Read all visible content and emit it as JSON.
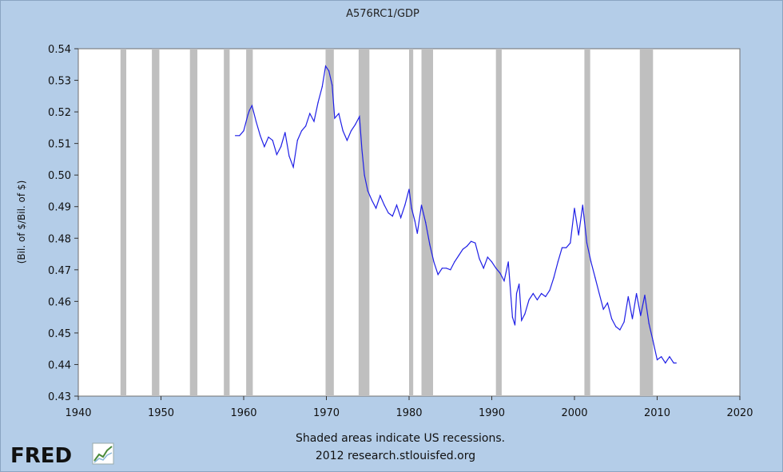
{
  "chart_data": {
    "type": "line",
    "title": "A576RC1/GDP",
    "ylabel": "(Bil. of $/Bil. of $)",
    "xlabel": "",
    "xlim": [
      1940,
      2020
    ],
    "ylim": [
      0.43,
      0.54
    ],
    "x_ticks": [
      1940,
      1950,
      1960,
      1970,
      1980,
      1990,
      2000,
      2010,
      2020
    ],
    "x_tick_labels": [
      "1940",
      "1950",
      "1960",
      "1970",
      "1980",
      "1990",
      "2000",
      "2010",
      "2020"
    ],
    "y_ticks": [
      0.43,
      0.44,
      0.45,
      0.46,
      0.47,
      0.48,
      0.49,
      0.5,
      0.51,
      0.52,
      0.53,
      0.54
    ],
    "y_tick_labels": [
      "0.43",
      "0.44",
      "0.45",
      "0.46",
      "0.47",
      "0.48",
      "0.49",
      "0.50",
      "0.51",
      "0.52",
      "0.53",
      "0.54"
    ],
    "grid": false,
    "line_color": "#1f1fe6",
    "recessions": [
      [
        1945.1,
        1945.8
      ],
      [
        1948.9,
        1949.8
      ],
      [
        1953.5,
        1954.4
      ],
      [
        1957.6,
        1958.3
      ],
      [
        1960.3,
        1961.1
      ],
      [
        1969.9,
        1970.9
      ],
      [
        1973.9,
        1975.2
      ],
      [
        1980.0,
        1980.5
      ],
      [
        1981.5,
        1982.9
      ],
      [
        1990.5,
        1991.2
      ],
      [
        2001.2,
        2001.9
      ],
      [
        2007.9,
        2009.5
      ]
    ],
    "recession_color": "#bfbfbf",
    "series": [
      {
        "x": [
          1959.0,
          1959.5,
          1960.0,
          1960.5,
          1960.7,
          1961.0,
          1961.5,
          1962.0,
          1962.5,
          1963.0,
          1963.5,
          1964.0,
          1964.5,
          1965.0,
          1965.5,
          1966.0,
          1966.5,
          1967.0,
          1967.5,
          1968.0,
          1968.5,
          1969.0,
          1969.5,
          1969.9,
          1970.3,
          1970.7,
          1971.0,
          1971.5,
          1972.0,
          1972.5,
          1973.0,
          1973.5,
          1974.0,
          1974.3,
          1974.6,
          1975.0,
          1975.5,
          1976.0,
          1976.5,
          1977.0,
          1977.5,
          1978.0,
          1978.5,
          1979.0,
          1979.5,
          1980.0,
          1980.3,
          1980.7,
          1981.0,
          1981.5,
          1982.0,
          1982.5,
          1983.0,
          1983.5,
          1984.0,
          1984.5,
          1985.0,
          1985.5,
          1986.0,
          1986.5,
          1987.0,
          1987.5,
          1988.0,
          1988.5,
          1989.0,
          1989.5,
          1990.0,
          1990.5,
          1991.0,
          1991.5,
          1992.0,
          1992.5,
          1992.8,
          1993.0,
          1993.3,
          1993.6,
          1994.0,
          1994.5,
          1995.0,
          1995.5,
          1996.0,
          1996.5,
          1997.0,
          1997.5,
          1998.0,
          1998.5,
          1999.0,
          1999.5,
          2000.0,
          2000.5,
          2001.0,
          2001.5,
          2002.0,
          2002.5,
          2003.0,
          2003.5,
          2004.0,
          2004.5,
          2005.0,
          2005.5,
          2006.0,
          2006.5,
          2007.0,
          2007.5,
          2008.0,
          2008.5,
          2009.0,
          2009.5,
          2010.0,
          2010.5,
          2011.0,
          2011.5,
          2012.0,
          2012.3
        ],
        "values": [
          0.5125,
          0.5125,
          0.514,
          0.519,
          0.5205,
          0.522,
          0.517,
          0.5125,
          0.509,
          0.512,
          0.511,
          0.5065,
          0.509,
          0.5135,
          0.506,
          0.5025,
          0.511,
          0.514,
          0.5155,
          0.5195,
          0.517,
          0.523,
          0.528,
          0.5345,
          0.533,
          0.5285,
          0.518,
          0.5195,
          0.514,
          0.511,
          0.514,
          0.516,
          0.5185,
          0.508,
          0.5,
          0.495,
          0.492,
          0.4895,
          0.4935,
          0.4905,
          0.488,
          0.487,
          0.4905,
          0.4865,
          0.4905,
          0.4955,
          0.4895,
          0.4855,
          0.4815,
          0.4905,
          0.485,
          0.478,
          0.4725,
          0.4685,
          0.4705,
          0.4705,
          0.47,
          0.4725,
          0.4745,
          0.4765,
          0.4775,
          0.479,
          0.4785,
          0.4735,
          0.4705,
          0.474,
          0.4725,
          0.4705,
          0.469,
          0.4665,
          0.4725,
          0.455,
          0.4525,
          0.4625,
          0.4655,
          0.454,
          0.456,
          0.4605,
          0.4625,
          0.4605,
          0.4625,
          0.4615,
          0.4635,
          0.4675,
          0.4725,
          0.477,
          0.477,
          0.4785,
          0.4895,
          0.481,
          0.4905,
          0.4785,
          0.4725,
          0.4675,
          0.4625,
          0.4575,
          0.4595,
          0.4545,
          0.452,
          0.451,
          0.4535,
          0.4615,
          0.4545,
          0.4625,
          0.4555,
          0.462,
          0.453,
          0.4475,
          0.4415,
          0.4425,
          0.4405,
          0.4425,
          0.4405,
          0.4405
        ]
      }
    ]
  },
  "footer": {
    "recession_note": "Shaded areas indicate US recessions.",
    "source_note": "2012 research.stlouisfed.org"
  },
  "logo": {
    "text": "FRED",
    "icon": "chart-trend-icon"
  }
}
